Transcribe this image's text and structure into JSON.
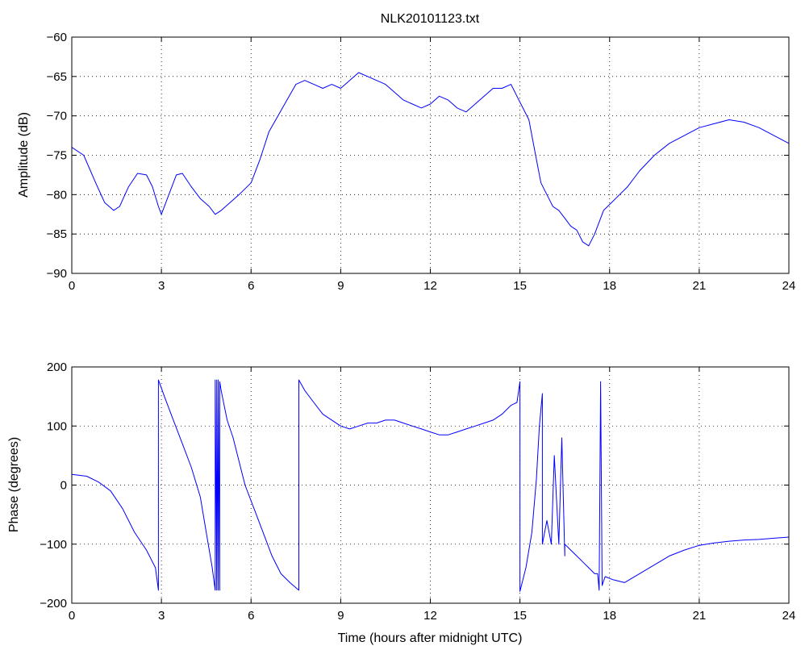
{
  "figure": {
    "title": "NLK20101123.txt",
    "line_color": "#0000ff",
    "grid": "dotted"
  },
  "chart_data": [
    {
      "type": "line",
      "title": "NLK20101123.txt",
      "xlabel": "",
      "ylabel": "Amplitude (dB)",
      "xlim": [
        0,
        24
      ],
      "ylim": [
        -90,
        -60
      ],
      "xticks": [
        0,
        3,
        6,
        9,
        12,
        15,
        18,
        21,
        24
      ],
      "yticks": [
        -90,
        -85,
        -80,
        -75,
        -70,
        -65,
        -60
      ],
      "grid": true,
      "series": [
        {
          "color": "#0000ff",
          "x": [
            0,
            0.4,
            0.8,
            1.1,
            1.4,
            1.6,
            1.9,
            2.2,
            2.5,
            2.7,
            2.9,
            3.0,
            3.2,
            3.5,
            3.7,
            4.0,
            4.3,
            4.6,
            4.8,
            5.0,
            5.3,
            5.6,
            6.0,
            6.3,
            6.6,
            6.9,
            7.2,
            7.5,
            7.8,
            8.1,
            8.4,
            8.7,
            9.0,
            9.3,
            9.6,
            9.9,
            10.2,
            10.5,
            10.8,
            11.1,
            11.4,
            11.7,
            12.0,
            12.3,
            12.6,
            12.9,
            13.2,
            13.5,
            13.8,
            14.1,
            14.4,
            14.7,
            14.9,
            15.1,
            15.3,
            15.5,
            15.7,
            15.9,
            16.1,
            16.3,
            16.5,
            16.7,
            16.9,
            17.1,
            17.3,
            17.5,
            17.8,
            18.2,
            18.6,
            19.0,
            19.5,
            20.0,
            20.5,
            21.0,
            21.5,
            22.0,
            22.5,
            23.0,
            23.5,
            24.0
          ],
          "values": [
            -74.0,
            -75.0,
            -78.5,
            -81.0,
            -82.0,
            -81.5,
            -79.0,
            -77.3,
            -77.5,
            -79.0,
            -81.5,
            -82.5,
            -80.5,
            -77.5,
            -77.3,
            -79.0,
            -80.5,
            -81.5,
            -82.5,
            -82.0,
            -81.0,
            -80.0,
            -78.5,
            -75.5,
            -72.0,
            -70.0,
            -68.0,
            -66.0,
            -65.5,
            -66.0,
            -66.5,
            -66.0,
            -66.5,
            -65.5,
            -64.5,
            -65.0,
            -65.5,
            -66.0,
            -67.0,
            -68.0,
            -68.5,
            -69.0,
            -68.5,
            -67.5,
            -68.0,
            -69.0,
            -69.5,
            -68.5,
            -67.5,
            -66.5,
            -66.5,
            -66.0,
            -67.5,
            -69.0,
            -70.5,
            -74.5,
            -78.5,
            -80.0,
            -81.5,
            -82.0,
            -83.0,
            -84.0,
            -84.5,
            -86.0,
            -86.5,
            -85.0,
            -82.0,
            -80.5,
            -79.0,
            -77.0,
            -75.0,
            -73.5,
            -72.5,
            -71.5,
            -71.0,
            -70.5,
            -70.8,
            -71.5,
            -72.5,
            -73.5
          ]
        }
      ]
    },
    {
      "type": "line",
      "title": "",
      "xlabel": "Time (hours after midnight UTC)",
      "ylabel": "Phase (degrees)",
      "xlim": [
        0,
        24
      ],
      "ylim": [
        -200,
        200
      ],
      "xticks": [
        0,
        3,
        6,
        9,
        12,
        15,
        18,
        21,
        24
      ],
      "yticks": [
        -200,
        -100,
        0,
        100,
        200
      ],
      "grid": true,
      "series": [
        {
          "color": "#0000ff",
          "x": [
            0,
            0.5,
            0.9,
            1.3,
            1.7,
            2.1,
            2.5,
            2.8,
            2.9,
            2.9,
            3.1,
            3.4,
            3.7,
            4.0,
            4.3,
            4.5,
            4.7,
            4.8,
            4.8,
            4.85,
            4.85,
            4.9,
            4.9,
            4.95,
            4.95,
            5.0,
            5.2,
            5.4,
            5.6,
            5.8,
            6.1,
            6.4,
            6.7,
            7.0,
            7.3,
            7.6,
            7.6,
            7.8,
            8.1,
            8.4,
            8.7,
            9.0,
            9.3,
            9.6,
            9.9,
            10.2,
            10.5,
            10.8,
            11.1,
            11.4,
            11.7,
            12.0,
            12.3,
            12.6,
            12.9,
            13.2,
            13.5,
            13.8,
            14.1,
            14.4,
            14.7,
            14.9,
            15.0,
            15.0,
            15.2,
            15.4,
            15.55,
            15.65,
            15.75,
            15.75,
            15.9,
            16.05,
            16.15,
            16.3,
            16.4,
            16.5,
            16.5,
            16.7,
            16.9,
            17.1,
            17.3,
            17.5,
            17.6,
            17.65,
            17.7,
            17.75,
            17.85,
            18.1,
            18.5,
            19.0,
            19.5,
            20.0,
            20.5,
            21.0,
            21.5,
            22.0,
            22.5,
            23.0,
            23.5,
            24.0
          ],
          "values": [
            18,
            15,
            5,
            -10,
            -40,
            -80,
            -110,
            -140,
            -178,
            178,
            150,
            110,
            70,
            30,
            -20,
            -80,
            -140,
            -178,
            178,
            -178,
            178,
            -178,
            178,
            -178,
            175,
            160,
            110,
            80,
            40,
            0,
            -40,
            -80,
            -120,
            -150,
            -165,
            -178,
            178,
            160,
            140,
            120,
            110,
            100,
            95,
            100,
            105,
            105,
            110,
            110,
            105,
            100,
            95,
            90,
            85,
            85,
            90,
            95,
            100,
            105,
            110,
            120,
            135,
            140,
            175,
            -180,
            -140,
            -80,
            10,
            100,
            155,
            -100,
            -60,
            -100,
            50,
            -100,
            80,
            -120,
            -100,
            -110,
            -120,
            -130,
            -140,
            -150,
            -150,
            -178,
            175,
            -170,
            -155,
            -160,
            -165,
            -150,
            -135,
            -120,
            -110,
            -102,
            -98,
            -95,
            -93,
            -92,
            -90,
            -88
          ]
        }
      ]
    }
  ]
}
